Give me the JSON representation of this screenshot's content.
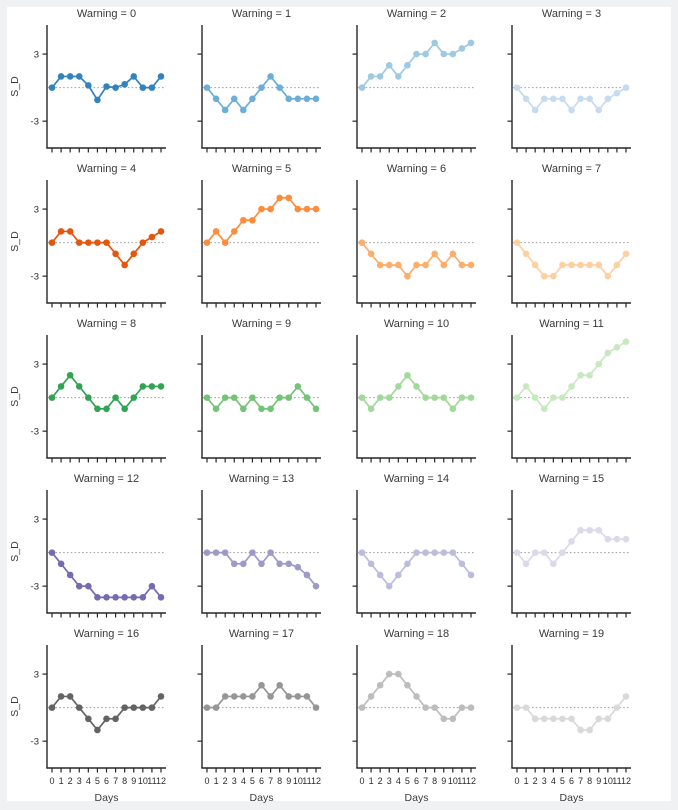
{
  "figure": {
    "ylabel": "S_D",
    "xlabel": "Days",
    "title_prefix": "Warning",
    "y_tick_labels": [
      "3",
      "-3"
    ],
    "y_tick_values": [
      3,
      -3
    ],
    "x_tick_labels": [
      "0",
      "1",
      "2",
      "3",
      "4",
      "5",
      "6",
      "7",
      "8",
      "9",
      "10",
      "11",
      "12"
    ],
    "xlim": [
      -0.55,
      12.55
    ],
    "ylim": [
      -5.4,
      5.6
    ],
    "zero_line_value": 0,
    "axis_color": "#262626",
    "tick_label_color": "#2b2b2b",
    "title_color": "#3a3a3a",
    "zero_line_color": "#999999",
    "background_color": "#ffffff",
    "grid": "off",
    "rows": 5,
    "cols": 4
  },
  "chart_data": [
    {
      "type": "line",
      "title": "Warning = 0",
      "series_color": "#3182bd",
      "x": [
        0,
        1,
        2,
        3,
        4,
        5,
        6,
        7,
        8,
        9,
        10,
        11,
        12
      ],
      "y": [
        0,
        1,
        1,
        1,
        0.2,
        -1.1,
        0.1,
        0,
        0.3,
        1,
        0,
        0,
        1
      ]
    },
    {
      "type": "line",
      "title": "Warning = 1",
      "series_color": "#6baed6",
      "x": [
        0,
        1,
        2,
        3,
        4,
        5,
        6,
        7,
        8,
        9,
        10,
        11,
        12
      ],
      "y": [
        0,
        -1,
        -2,
        -1,
        -2,
        -1,
        0,
        1,
        0,
        -1,
        -1,
        -1,
        -1
      ]
    },
    {
      "type": "line",
      "title": "Warning = 2",
      "series_color": "#9ecae1",
      "x": [
        0,
        1,
        2,
        3,
        4,
        5,
        6,
        7,
        8,
        9,
        10,
        11,
        12
      ],
      "y": [
        0,
        1,
        1,
        2,
        1,
        2,
        3,
        3,
        4,
        3,
        3,
        3.5,
        4
      ]
    },
    {
      "type": "line",
      "title": "Warning = 3",
      "series_color": "#c6dbef",
      "x": [
        0,
        1,
        2,
        3,
        4,
        5,
        6,
        7,
        8,
        9,
        10,
        11,
        12
      ],
      "y": [
        0,
        -1,
        -2,
        -1,
        -1,
        -1,
        -2,
        -1,
        -1,
        -2,
        -1,
        -0.5,
        0
      ]
    },
    {
      "type": "line",
      "title": "Warning = 4",
      "series_color": "#e6550d",
      "x": [
        0,
        1,
        2,
        3,
        4,
        5,
        6,
        7,
        8,
        9,
        10,
        11,
        12
      ],
      "y": [
        0,
        1,
        1,
        0,
        0,
        0,
        0,
        -1,
        -2,
        -1,
        0,
        0.5,
        1
      ]
    },
    {
      "type": "line",
      "title": "Warning = 5",
      "series_color": "#fd8d3c",
      "x": [
        0,
        1,
        2,
        3,
        4,
        5,
        6,
        7,
        8,
        9,
        10,
        11,
        12
      ],
      "y": [
        0,
        1,
        0,
        1,
        2,
        2,
        3,
        3,
        4,
        4,
        3,
        3,
        3
      ]
    },
    {
      "type": "line",
      "title": "Warning = 6",
      "series_color": "#fdae6b",
      "x": [
        0,
        1,
        2,
        3,
        4,
        5,
        6,
        7,
        8,
        9,
        10,
        11,
        12
      ],
      "y": [
        0,
        -1,
        -2,
        -2,
        -2,
        -3,
        -2,
        -2,
        -1,
        -2,
        -1,
        -2,
        -2
      ]
    },
    {
      "type": "line",
      "title": "Warning = 7",
      "series_color": "#fdd0a2",
      "x": [
        0,
        1,
        2,
        3,
        4,
        5,
        6,
        7,
        8,
        9,
        10,
        11,
        12
      ],
      "y": [
        0,
        -1,
        -2,
        -3,
        -3,
        -2,
        -2,
        -2,
        -2,
        -2,
        -3,
        -2,
        -1
      ]
    },
    {
      "type": "line",
      "title": "Warning = 8",
      "series_color": "#31a354",
      "x": [
        0,
        1,
        2,
        3,
        4,
        5,
        6,
        7,
        8,
        9,
        10,
        11,
        12
      ],
      "y": [
        0,
        1,
        2,
        1,
        0,
        -1,
        -1,
        0,
        -1,
        0,
        1,
        1,
        1
      ]
    },
    {
      "type": "line",
      "title": "Warning = 9",
      "series_color": "#74c476",
      "x": [
        0,
        1,
        2,
        3,
        4,
        5,
        6,
        7,
        8,
        9,
        10,
        11,
        12
      ],
      "y": [
        0,
        -1,
        0,
        0,
        -1,
        0,
        -1,
        -1,
        0,
        0,
        1,
        0,
        -1
      ]
    },
    {
      "type": "line",
      "title": "Warning = 10",
      "series_color": "#a1d99b",
      "x": [
        0,
        1,
        2,
        3,
        4,
        5,
        6,
        7,
        8,
        9,
        10,
        11,
        12
      ],
      "y": [
        0,
        -1,
        0,
        0,
        1,
        2,
        1,
        0,
        0,
        0,
        -1,
        0,
        0
      ]
    },
    {
      "type": "line",
      "title": "Warning = 11",
      "series_color": "#c7e9c0",
      "x": [
        0,
        1,
        2,
        3,
        4,
        5,
        6,
        7,
        8,
        9,
        10,
        11,
        12
      ],
      "y": [
        0,
        1,
        0,
        -1,
        0,
        0,
        1,
        2,
        2,
        3,
        4,
        4.5,
        5
      ]
    },
    {
      "type": "line",
      "title": "Warning = 12",
      "series_color": "#756bb1",
      "x": [
        0,
        1,
        2,
        3,
        4,
        5,
        6,
        7,
        8,
        9,
        10,
        11,
        12
      ],
      "y": [
        0,
        -1,
        -2,
        -3,
        -3,
        -4,
        -4,
        -4,
        -4,
        -4,
        -4,
        -3,
        -4
      ]
    },
    {
      "type": "line",
      "title": "Warning = 13",
      "series_color": "#9e9ac8",
      "x": [
        0,
        1,
        2,
        3,
        4,
        5,
        6,
        7,
        8,
        9,
        10,
        11,
        12
      ],
      "y": [
        0,
        0,
        0,
        -1,
        -1,
        0,
        -1,
        0,
        -1,
        -1,
        -1.3,
        -2,
        -3
      ]
    },
    {
      "type": "line",
      "title": "Warning = 14",
      "series_color": "#bcbddc",
      "x": [
        0,
        1,
        2,
        3,
        4,
        5,
        6,
        7,
        8,
        9,
        10,
        11,
        12
      ],
      "y": [
        0,
        -1,
        -2,
        -3,
        -2,
        -1,
        0,
        0,
        0,
        0,
        0,
        -1,
        -2
      ]
    },
    {
      "type": "line",
      "title": "Warning = 15",
      "series_color": "#dadaeb",
      "x": [
        0,
        1,
        2,
        3,
        4,
        5,
        6,
        7,
        8,
        9,
        10,
        11,
        12
      ],
      "y": [
        0,
        -1,
        0,
        0,
        -1,
        0,
        1,
        2,
        2,
        2,
        1.2,
        1.2,
        1.2
      ]
    },
    {
      "type": "line",
      "title": "Warning = 16",
      "series_color": "#636363",
      "x": [
        0,
        1,
        2,
        3,
        4,
        5,
        6,
        7,
        8,
        9,
        10,
        11,
        12
      ],
      "y": [
        0,
        1,
        1,
        0,
        -1,
        -2,
        -1,
        -1,
        0,
        0,
        0,
        0,
        1
      ]
    },
    {
      "type": "line",
      "title": "Warning = 17",
      "series_color": "#969696",
      "x": [
        0,
        1,
        2,
        3,
        4,
        5,
        6,
        7,
        8,
        9,
        10,
        11,
        12
      ],
      "y": [
        0,
        0,
        1,
        1,
        1,
        1,
        2,
        1,
        2,
        1,
        1,
        1,
        0
      ]
    },
    {
      "type": "line",
      "title": "Warning = 18",
      "series_color": "#bdbdbd",
      "x": [
        0,
        1,
        2,
        3,
        4,
        5,
        6,
        7,
        8,
        9,
        10,
        11,
        12
      ],
      "y": [
        0,
        1,
        2,
        3,
        3,
        2,
        1,
        0,
        0,
        -1,
        -1,
        0,
        0
      ]
    },
    {
      "type": "line",
      "title": "Warning = 19",
      "series_color": "#d9d9d9",
      "x": [
        0,
        1,
        2,
        3,
        4,
        5,
        6,
        7,
        8,
        9,
        10,
        11,
        12
      ],
      "y": [
        0,
        0,
        -1,
        -1,
        -1,
        -1,
        -1,
        -2,
        -2,
        -1,
        -1,
        0,
        1
      ]
    }
  ]
}
